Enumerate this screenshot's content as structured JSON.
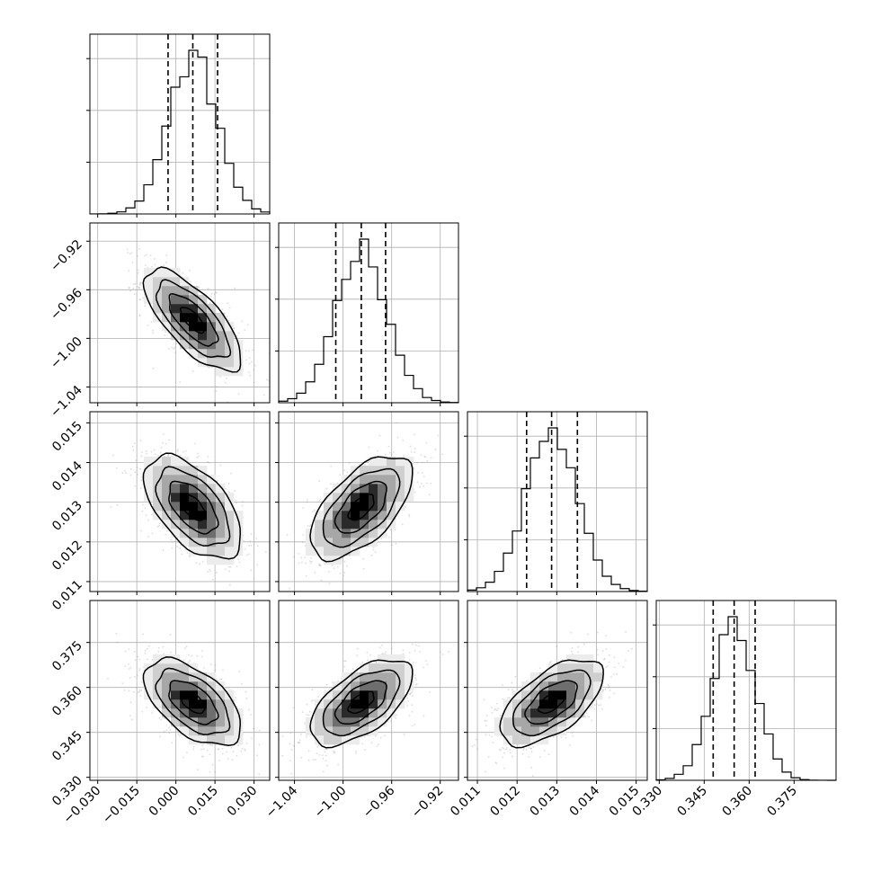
{
  "chart_data": {
    "type": "corner",
    "grid": true,
    "parameters": [
      {
        "index": 0,
        "mean": 0.0065,
        "sigma": 0.0093,
        "range": [
          -0.033,
          0.036
        ],
        "ticks": [
          -0.03,
          -0.015,
          0.0,
          0.015,
          0.03
        ],
        "tick_labels": [
          "−0.030",
          "−0.015",
          "0.000",
          "0.015",
          "0.030"
        ],
        "quantiles": [
          -0.003,
          0.0065,
          0.016
        ]
      },
      {
        "index": 1,
        "mean": -0.985,
        "sigma": 0.021,
        "range": [
          -1.053,
          -0.905
        ],
        "ticks": [
          -1.04,
          -1.0,
          -0.96,
          -0.92
        ],
        "tick_labels": [
          "−1.04",
          "−1.00",
          "−0.96",
          "−0.92"
        ],
        "quantiles": [
          -1.006,
          -0.985,
          -0.965
        ]
      },
      {
        "index": 2,
        "mean": 0.01287,
        "sigma": 0.00065,
        "range": [
          0.01075,
          0.01528
        ],
        "ticks": [
          0.011,
          0.012,
          0.013,
          0.014,
          0.015
        ],
        "tick_labels": [
          "0.011",
          "0.012",
          "0.013",
          "0.014",
          "0.015"
        ],
        "quantiles": [
          0.01224,
          0.01287,
          0.01352
        ]
      },
      {
        "index": 3,
        "mean": 0.355,
        "sigma": 0.0072,
        "range": [
          0.329,
          0.389
        ],
        "ticks": [
          0.33,
          0.345,
          0.36,
          0.375
        ],
        "tick_labels": [
          "0.330",
          "0.345",
          "0.360",
          "0.375"
        ],
        "quantiles": [
          0.348,
          0.355,
          0.362
        ]
      }
    ],
    "correlations": [
      {
        "pair": [
          1,
          0
        ],
        "rho": -0.72
      },
      {
        "pair": [
          2,
          0
        ],
        "rho": -0.55
      },
      {
        "pair": [
          2,
          1
        ],
        "rho": 0.6
      },
      {
        "pair": [
          3,
          0
        ],
        "rho": -0.55
      },
      {
        "pair": [
          3,
          1
        ],
        "rho": 0.6
      },
      {
        "pair": [
          3,
          2
        ],
        "rho": 0.6
      }
    ],
    "contour_levels_sigma": [
      0.5,
      1.0,
      1.5,
      2.0
    ],
    "histogram_bins": 20
  }
}
